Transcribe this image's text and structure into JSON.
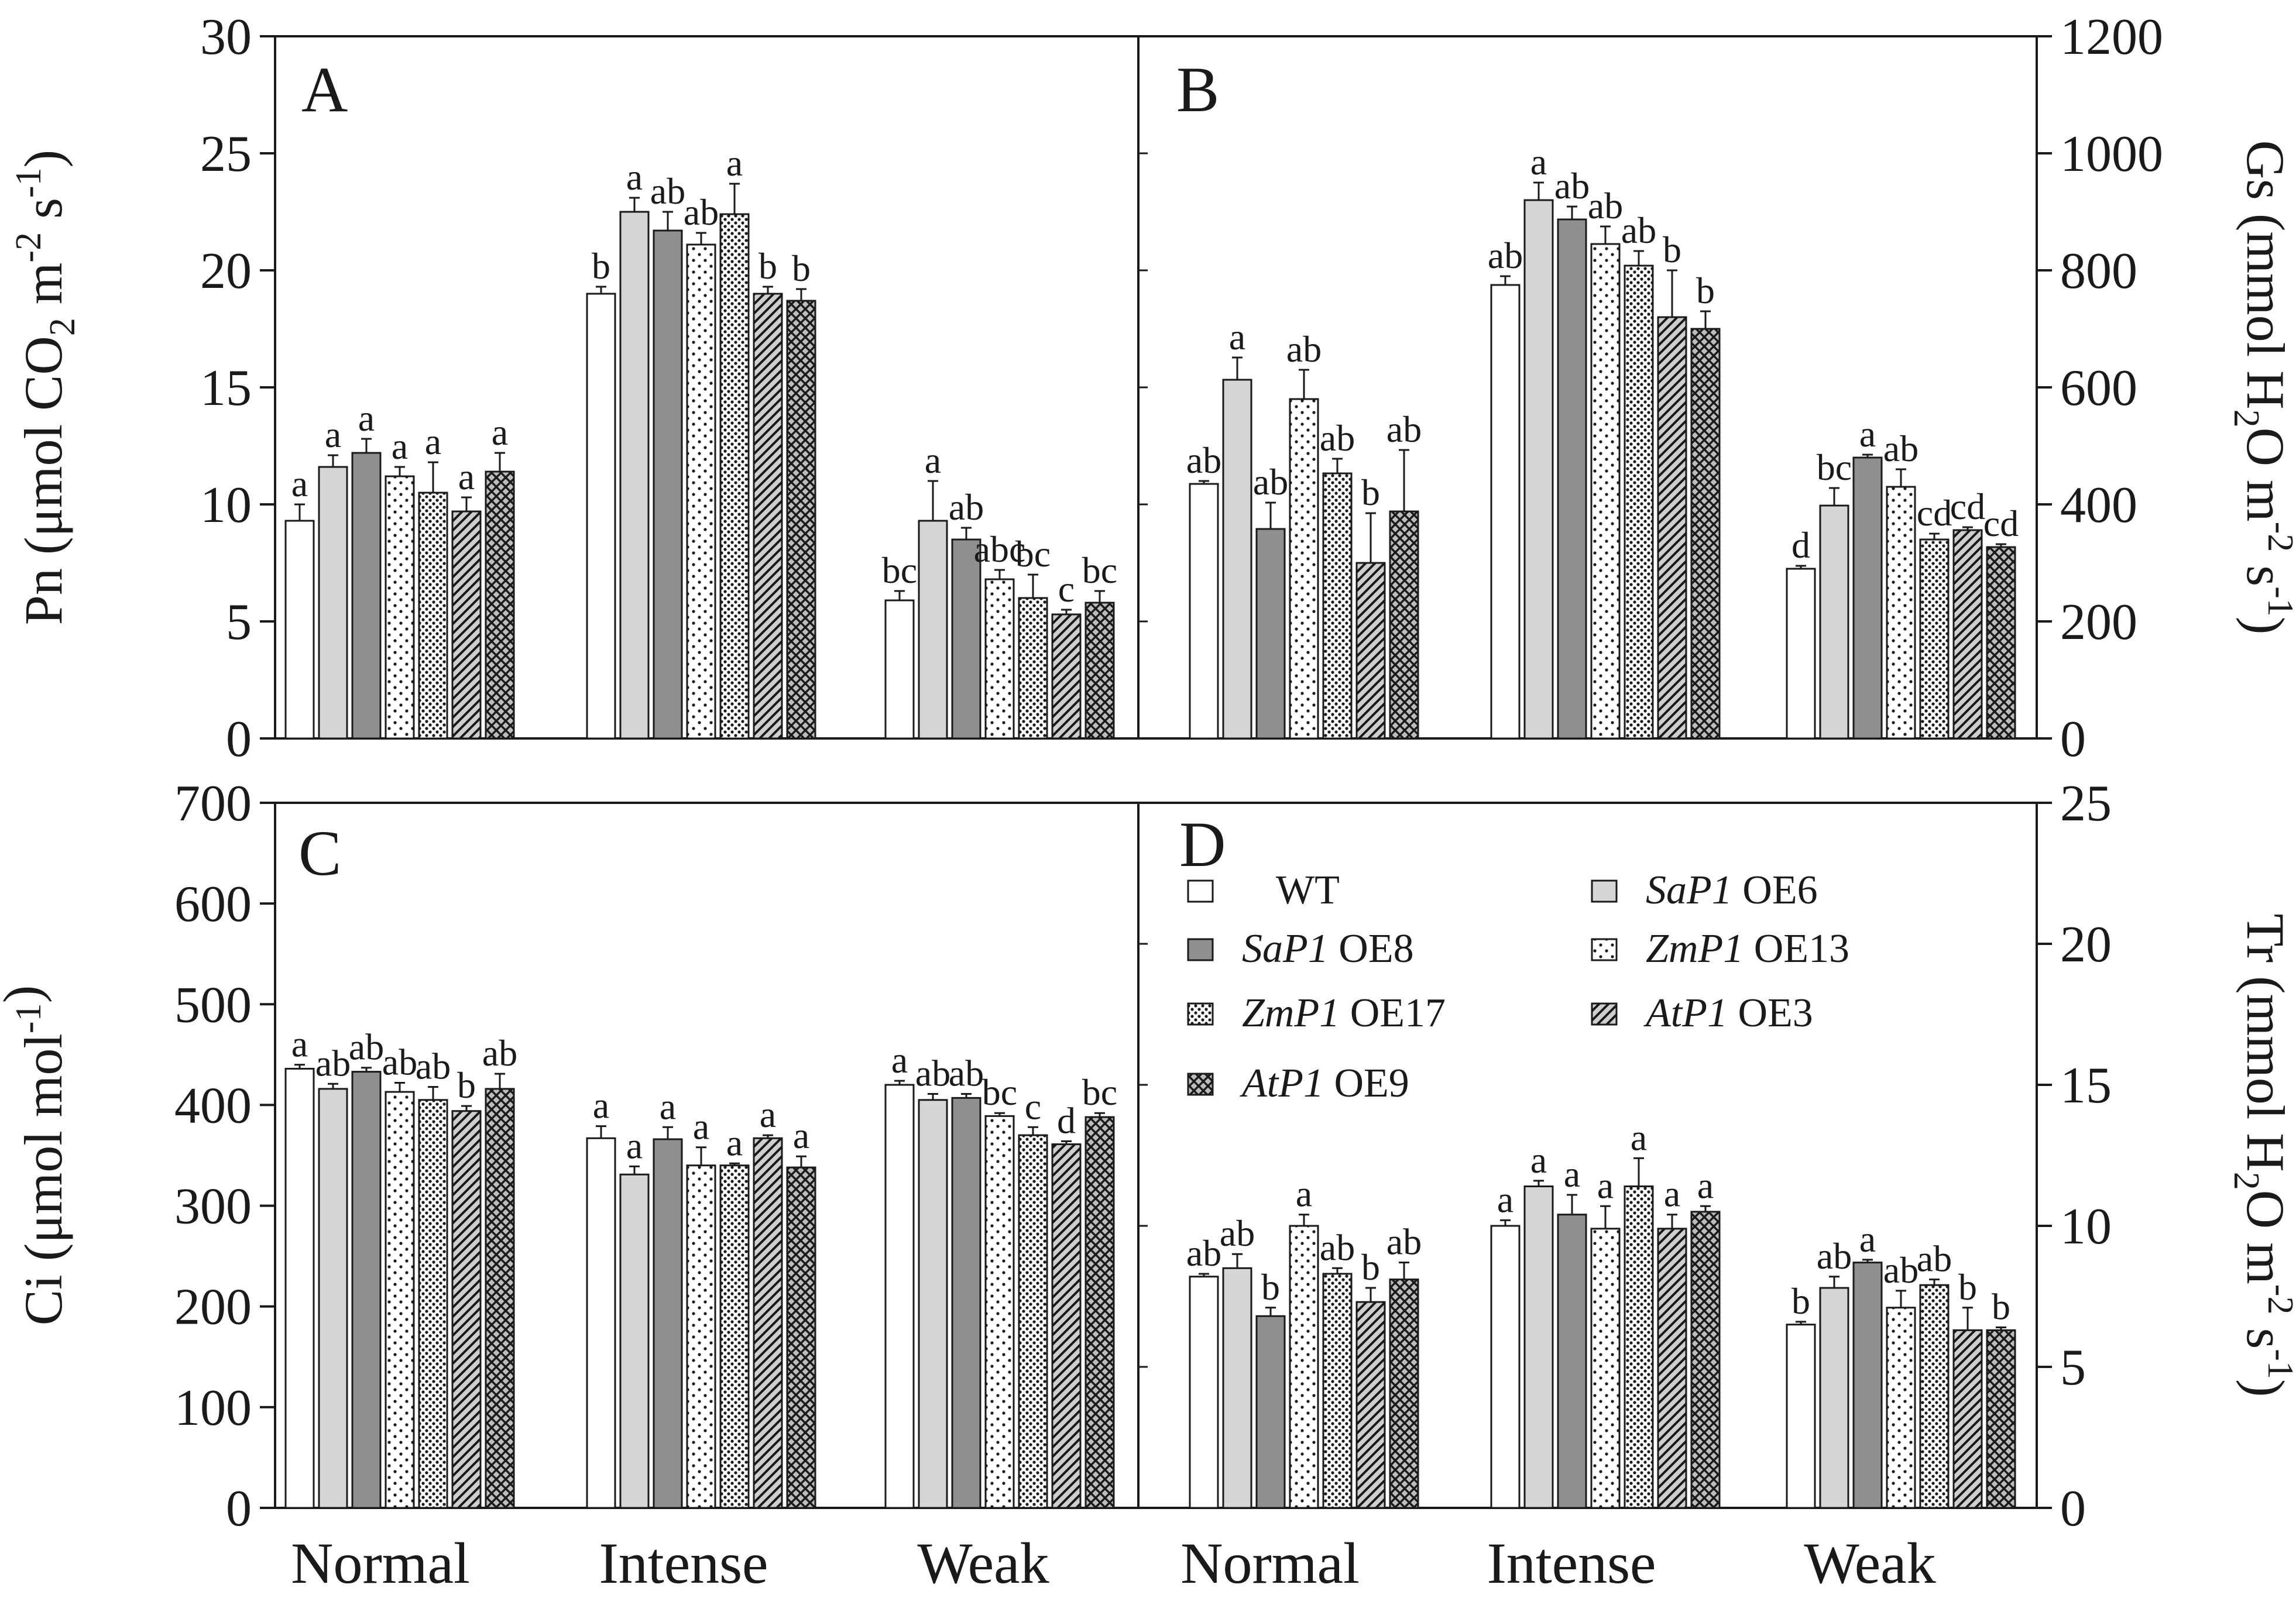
{
  "colors": {
    "axis": "#1a1a1a",
    "wt": "#ffffff",
    "sap1_oe6": "#d6d6d6",
    "sap1_oe8": "#8f8f8f",
    "pattern": "#1a1a1a"
  },
  "legend": [
    {
      "key": "WT",
      "gene": "",
      "line": "WT",
      "pattern": "white"
    },
    {
      "key": "SaP1 OE6",
      "gene": "SaP1",
      "line": "OE6",
      "pattern": "lightgray"
    },
    {
      "key": "SaP1 OE8",
      "gene": "SaP1",
      "line": "OE8",
      "pattern": "darkgray"
    },
    {
      "key": "ZmP1 OE13",
      "gene": "ZmP1",
      "line": "OE13",
      "pattern": "sparse-dots"
    },
    {
      "key": "ZmP1 OE17",
      "gene": "ZmP1",
      "line": "OE17",
      "pattern": "dense-dots"
    },
    {
      "key": "AtP1 OE3",
      "gene": "AtP1",
      "line": "OE3",
      "pattern": "diagonal"
    },
    {
      "key": "AtP1 OE9",
      "gene": "AtP1",
      "line": "OE9",
      "pattern": "crosshatch"
    }
  ],
  "chart_data": [
    {
      "type": "bar",
      "panel": "A",
      "title": "",
      "categories": [
        "Normal",
        "Intense",
        "Weak"
      ],
      "ylabel": {
        "main": "Pn (μmol CO",
        "sub": "2",
        "rest": " m",
        "sup1": "-2",
        "mid": " s",
        "sup2": "-1",
        "end": ")"
      },
      "ylim": [
        0,
        30
      ],
      "yticks": [
        0,
        5,
        10,
        15,
        20,
        25,
        30
      ],
      "axis_side": "left",
      "series": [
        {
          "name": "WT",
          "values": [
            9.3,
            19.0,
            5.9
          ],
          "errors": [
            0.7,
            0.3,
            0.4
          ],
          "letters": [
            "a",
            "b",
            "bc"
          ]
        },
        {
          "name": "SaP1 OE6",
          "values": [
            11.6,
            22.5,
            9.3
          ],
          "errors": [
            0.5,
            0.6,
            1.7
          ],
          "letters": [
            "a",
            "a",
            "a"
          ]
        },
        {
          "name": "SaP1 OE8",
          "values": [
            12.2,
            21.7,
            8.5
          ],
          "errors": [
            0.6,
            0.8,
            0.5
          ],
          "letters": [
            "a",
            "ab",
            "ab"
          ]
        },
        {
          "name": "ZmP1 OE13",
          "values": [
            11.2,
            21.1,
            6.8
          ],
          "errors": [
            0.4,
            0.5,
            0.4
          ],
          "letters": [
            "a",
            "ab",
            "abc"
          ]
        },
        {
          "name": "ZmP1 OE17",
          "values": [
            10.5,
            22.4,
            6.0
          ],
          "errors": [
            1.3,
            1.3,
            1.0
          ],
          "letters": [
            "a",
            "a",
            "bc"
          ]
        },
        {
          "name": "AtP1 OE3",
          "values": [
            9.7,
            19.0,
            5.3
          ],
          "errors": [
            0.6,
            0.3,
            0.2
          ],
          "letters": [
            "a",
            "b",
            "c"
          ]
        },
        {
          "name": "AtP1 OE9",
          "values": [
            11.4,
            18.7,
            5.8
          ],
          "errors": [
            0.8,
            0.5,
            0.5
          ],
          "letters": [
            "a",
            "b",
            "bc"
          ]
        }
      ]
    },
    {
      "type": "bar",
      "panel": "B",
      "title": "",
      "categories": [
        "Normal",
        "Intense",
        "Weak"
      ],
      "ylabel": {
        "main": "Gs (mmol H",
        "sub": "2",
        "rest": "O m",
        "sup1": "-2",
        "mid": " s",
        "sup2": "-1",
        "end": ")"
      },
      "ylim": [
        0,
        1200
      ],
      "yticks": [
        0,
        200,
        400,
        600,
        800,
        1000,
        1200
      ],
      "axis_side": "right",
      "series": [
        {
          "name": "WT",
          "values": [
            435,
            775,
            290
          ],
          "errors": [
            5,
            15,
            5
          ],
          "letters": [
            "ab",
            "ab",
            "d"
          ]
        },
        {
          "name": "SaP1 OE6",
          "values": [
            613,
            920,
            398
          ],
          "errors": [
            38,
            30,
            30
          ],
          "letters": [
            "a",
            "a",
            "bc"
          ]
        },
        {
          "name": "SaP1 OE8",
          "values": [
            358,
            887,
            480
          ],
          "errors": [
            45,
            22,
            5
          ],
          "letters": [
            "ab",
            "ab",
            "a"
          ]
        },
        {
          "name": "ZmP1 OE13",
          "values": [
            580,
            845,
            430
          ],
          "errors": [
            50,
            30,
            30
          ],
          "letters": [
            "ab",
            "ab",
            "ab"
          ]
        },
        {
          "name": "ZmP1 OE17",
          "values": [
            453,
            808,
            340
          ],
          "errors": [
            25,
            25,
            10
          ],
          "letters": [
            "ab",
            "ab",
            "cd"
          ]
        },
        {
          "name": "AtP1 OE3",
          "values": [
            300,
            720,
            356
          ],
          "errors": [
            85,
            80,
            5
          ],
          "letters": [
            "b",
            "b",
            "cd"
          ]
        },
        {
          "name": "AtP1 OE9",
          "values": [
            388,
            700,
            327
          ],
          "errors": [
            105,
            30,
            5
          ],
          "letters": [
            "ab",
            "b",
            "cd"
          ]
        }
      ]
    },
    {
      "type": "bar",
      "panel": "C",
      "title": "",
      "categories": [
        "Normal",
        "Intense",
        "Weak"
      ],
      "ylabel": {
        "main": "Ci (μmol  mol",
        "sub": "",
        "rest": "",
        "sup1": "-1",
        "mid": "",
        "sup2": "",
        "end": ")"
      },
      "ylim": [
        0,
        700
      ],
      "yticks": [
        0,
        100,
        200,
        300,
        400,
        500,
        600,
        700
      ],
      "axis_side": "left",
      "series": [
        {
          "name": "WT",
          "values": [
            436,
            367,
            420
          ],
          "errors": [
            4,
            12,
            4
          ],
          "letters": [
            "a",
            "a",
            "a"
          ]
        },
        {
          "name": "SaP1 OE6",
          "values": [
            416,
            331,
            405
          ],
          "errors": [
            5,
            8,
            6
          ],
          "letters": [
            "ab",
            "a",
            "ab"
          ]
        },
        {
          "name": "SaP1 OE8",
          "values": [
            433,
            366,
            407
          ],
          "errors": [
            4,
            12,
            4
          ],
          "letters": [
            "ab",
            "a",
            "ab"
          ]
        },
        {
          "name": "ZmP1 OE13",
          "values": [
            413,
            340,
            389
          ],
          "errors": [
            9,
            18,
            3
          ],
          "letters": [
            "ab",
            "a",
            "bc"
          ]
        },
        {
          "name": "ZmP1 OE17",
          "values": [
            405,
            340,
            370
          ],
          "errors": [
            13,
            2,
            8
          ],
          "letters": [
            "ab",
            "a",
            "c"
          ]
        },
        {
          "name": "AtP1 OE3",
          "values": [
            394,
            367,
            361
          ],
          "errors": [
            5,
            3,
            3
          ],
          "letters": [
            "b",
            "a",
            "d"
          ]
        },
        {
          "name": "AtP1 OE9",
          "values": [
            416,
            338,
            388
          ],
          "errors": [
            15,
            11,
            4
          ],
          "letters": [
            "ab",
            "a",
            "bc"
          ]
        }
      ]
    },
    {
      "type": "bar",
      "panel": "D",
      "title": "",
      "categories": [
        "Normal",
        "Intense",
        "Weak"
      ],
      "ylabel": {
        "main": "Tr  (mmol H",
        "sub": "2",
        "rest": "O m",
        "sup1": "-2",
        "mid": " s",
        "sup2": "-1",
        "end": ")"
      },
      "ylim": [
        0,
        25
      ],
      "yticks": [
        0,
        5,
        10,
        15,
        20,
        25
      ],
      "axis_side": "right",
      "series": [
        {
          "name": "WT",
          "values": [
            8.2,
            10.0,
            6.5
          ],
          "errors": [
            0.1,
            0.2,
            0.1
          ],
          "letters": [
            "ab",
            "a",
            "b"
          ]
        },
        {
          "name": "SaP1 OE6",
          "values": [
            8.5,
            11.4,
            7.8
          ],
          "errors": [
            0.5,
            0.2,
            0.4
          ],
          "letters": [
            "ab",
            "a",
            "ab"
          ]
        },
        {
          "name": "SaP1 OE8",
          "values": [
            6.8,
            10.4,
            8.7
          ],
          "errors": [
            0.3,
            0.7,
            0.1
          ],
          "letters": [
            "b",
            "a",
            "a"
          ]
        },
        {
          "name": "ZmP1 OE13",
          "values": [
            10.0,
            9.9,
            7.1
          ],
          "errors": [
            0.4,
            0.8,
            0.6
          ],
          "letters": [
            "a",
            "a",
            "ab"
          ]
        },
        {
          "name": "ZmP1 OE17",
          "values": [
            8.3,
            11.4,
            7.9
          ],
          "errors": [
            0.2,
            1.0,
            0.2
          ],
          "letters": [
            "ab",
            "a",
            "ab"
          ]
        },
        {
          "name": "AtP1 OE3",
          "values": [
            7.3,
            9.9,
            6.3
          ],
          "errors": [
            0.5,
            0.5,
            0.8
          ],
          "letters": [
            "b",
            "a",
            "b"
          ]
        },
        {
          "name": "AtP1 OE9",
          "values": [
            8.1,
            10.5,
            6.3
          ],
          "errors": [
            0.6,
            0.2,
            0.1
          ],
          "letters": [
            "ab",
            "a",
            "b"
          ]
        }
      ]
    }
  ]
}
